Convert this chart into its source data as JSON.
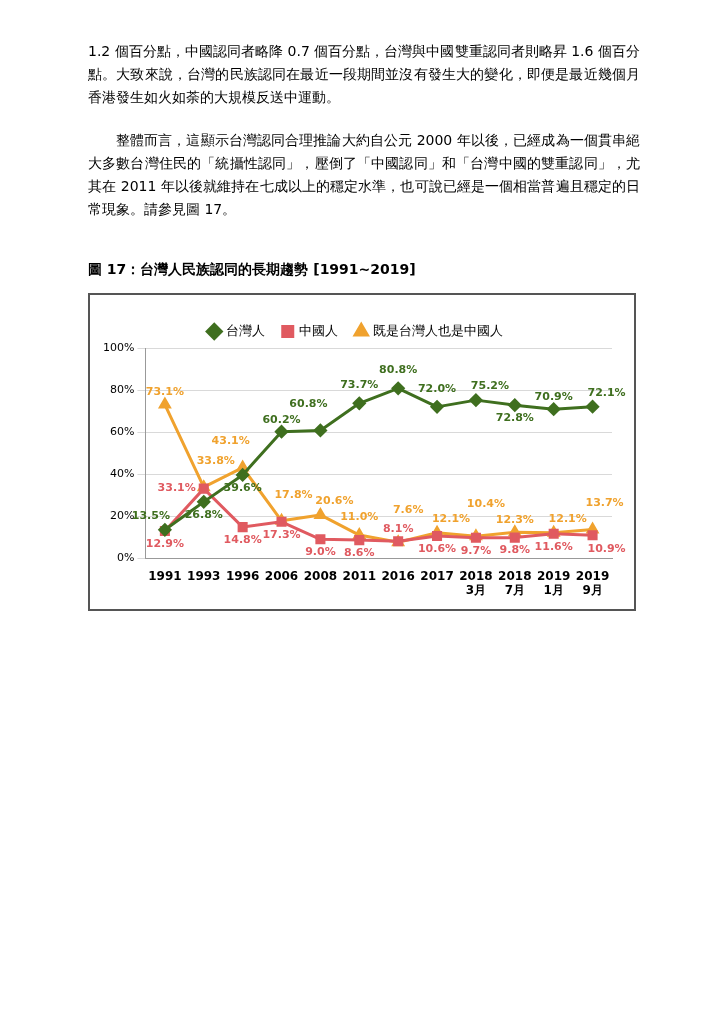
{
  "chart_data": {
    "type": "line",
    "title": "圖 17：台灣人民族認同的長期趨勢 [1991~2019]",
    "annotations": [
      "1.2 個百分點，中國認同者略降 0.7 個百分點，台灣與中國雙重認同者則略昇 1.6 個百分點。大致來說，台灣的民族認同在最近一段期間並沒有發生大的變化，即便是最近幾個月香港發生如火如荼的大規模反送中運動。",
      "整體而言，這顯示台灣認同合理推論大約自公元 2000 年以後，已經成為一個貫串絕大多數台灣住民的「統攝性認同」，壓倒了「中國認同」和「台灣中國的雙重認同」，尤其在 2011 年以後就維持在七成以上的穩定水準，也可說已經是一個相當普遍且穩定的日常現象。請參見圖 17。"
    ],
    "categories": [
      "1991",
      "1993",
      "1996",
      "2006",
      "2008",
      "2011",
      "2016",
      "2017",
      "2018\n3月",
      "2018\n7月",
      "2019\n1月",
      "2019\n9月"
    ],
    "series": [
      {
        "name": "台灣人",
        "color": "#3f6f1f",
        "marker": "diamond",
        "values": [
          13.5,
          26.8,
          39.6,
          60.2,
          60.8,
          73.7,
          80.8,
          72.0,
          75.2,
          72.8,
          70.9,
          72.1
        ],
        "value_labels": [
          "13.5%",
          "26.8%",
          "39.6%",
          "60.2%",
          "60.8%",
          "73.7%",
          "80.8%",
          "72.0%",
          "75.2%",
          "72.8%",
          "70.9%",
          "72.1%"
        ]
      },
      {
        "name": "中國人",
        "color": "#e05a60",
        "marker": "square",
        "values": [
          12.9,
          33.1,
          14.8,
          17.3,
          9.0,
          8.6,
          8.1,
          10.6,
          9.7,
          9.8,
          11.6,
          10.9
        ],
        "value_labels": [
          "12.9%",
          "33.1%",
          "14.8%",
          "17.3%",
          "9.0%",
          "8.6%",
          "8.1%",
          "10.6%",
          "9.7%",
          "9.8%",
          "11.6%",
          "10.9%"
        ]
      },
      {
        "name": "既是台灣人也是中國人",
        "color": "#f0a22e",
        "marker": "triangle",
        "values": [
          73.1,
          33.8,
          43.1,
          17.8,
          20.6,
          11.0,
          7.6,
          12.1,
          10.4,
          12.3,
          12.1,
          13.7
        ],
        "value_labels": [
          "73.1%",
          "33.8%",
          "43.1%",
          "17.8%",
          "20.6%",
          "11.0%",
          "7.6%",
          "12.1%",
          "10.4%",
          "12.3%",
          "12.1%",
          "13.7%"
        ]
      }
    ],
    "ylim": [
      0,
      100
    ],
    "yticks": [
      {
        "value": 0,
        "label": "0%"
      },
      {
        "value": 20,
        "label": "20%"
      },
      {
        "value": 40,
        "label": "40%"
      },
      {
        "value": 60,
        "label": "60%"
      },
      {
        "value": 80,
        "label": "80%"
      },
      {
        "value": 100,
        "label": "100%"
      }
    ],
    "grid": "y",
    "legend": "top",
    "line_style": "solid"
  }
}
